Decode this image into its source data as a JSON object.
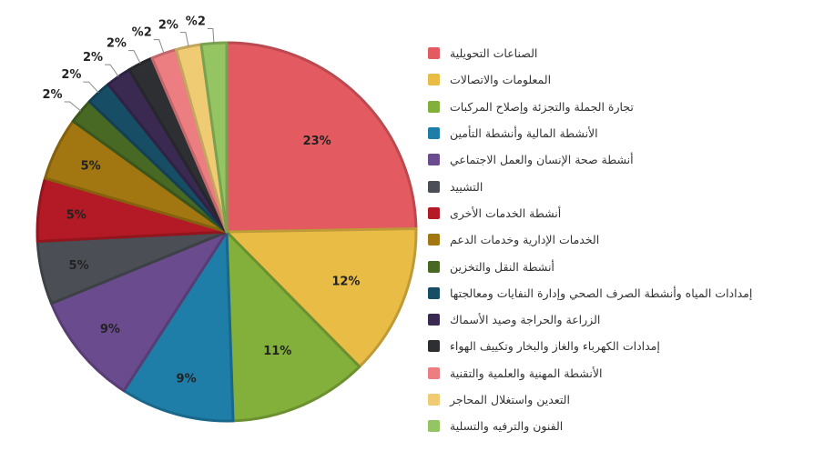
{
  "chart_data": {
    "type": "pie",
    "series": [
      {
        "name": "الصناعات التحويلية",
        "value": 23,
        "label": "23%",
        "color": "#e45a61"
      },
      {
        "name": "المعلومات والاتصالات",
        "value": 12,
        "label": "12%",
        "color": "#e9bc45"
      },
      {
        "name": "تجارة الجملة والتجزئة وإصلاح المركبات",
        "value": 11,
        "label": "11%",
        "color": "#82b03a"
      },
      {
        "name": "الأنشطة المالية وأنشطة التأمين",
        "value": 9,
        "label": "9%",
        "color": "#1f7ea8"
      },
      {
        "name": "أنشطة صحة الإنسان والعمل الاجتماعي",
        "value": 9,
        "label": "9%",
        "color": "#6a4b8e"
      },
      {
        "name": "التشييد",
        "value": 5,
        "label": "5%",
        "color": "#4b4f55"
      },
      {
        "name": "أنشطة الخدمات الأخرى",
        "value": 5,
        "label": "5%",
        "color": "#b31a25"
      },
      {
        "name": "الخدمات الإدارية وخدمات الدعم",
        "value": 5,
        "label": "5%",
        "color": "#a27610"
      },
      {
        "name": "أنشطة النقل والتخزين",
        "value": 2,
        "label": "2%",
        "color": "#476923"
      },
      {
        "name": "إمدادات المياه وأنشطة الصرف الصحي وإدارة النفايات ومعالجتها",
        "value": 2,
        "label": "2%",
        "color": "#174e66"
      },
      {
        "name": "الزراعة والحراجة وصيد الأسماك",
        "value": 2,
        "label": "2%",
        "color": "#3a2a52"
      },
      {
        "name": "إمدادات الكهرباء والغاز والبخار وتكييف الهواء",
        "value": 2,
        "label": "2%",
        "color": "#2d2f33"
      },
      {
        "name": "الأنشطة المهنية والعلمية والتقنية",
        "value": 2,
        "label": "%2",
        "color": "#ec7e82"
      },
      {
        "name": "التعدين واستغلال المحاجر",
        "value": 2,
        "label": "2%",
        "color": "#efcb73"
      },
      {
        "name": "الفنون والترفيه والتسلية",
        "value": 2,
        "label": "%2",
        "color": "#95c462"
      }
    ],
    "title": "",
    "legend_position": "right"
  }
}
